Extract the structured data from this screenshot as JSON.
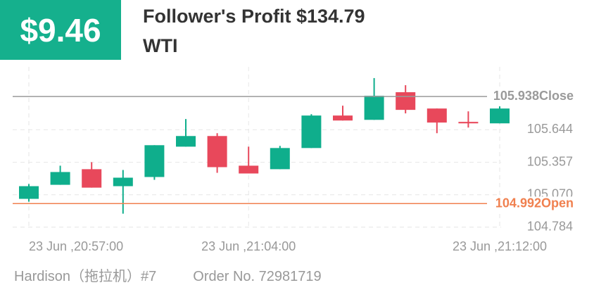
{
  "header": {
    "badge": "$9.46",
    "title": "Follower's Profit $134.79",
    "subtitle": "WTI"
  },
  "chart_data": {
    "type": "candlestick",
    "categories": [
      "23 Jun ,20:57:00",
      null,
      null,
      null,
      null,
      null,
      null,
      "23 Jun ,21:04:00",
      null,
      null,
      null,
      null,
      null,
      null,
      null,
      "23 Jun ,21:12:00"
    ],
    "open": [
      105.034,
      105.158,
      105.296,
      105.146,
      105.227,
      105.495,
      105.589,
      105.327,
      105.296,
      105.483,
      105.77,
      105.732,
      105.976,
      105.832,
      105.714,
      105.701
    ],
    "high": [
      105.165,
      105.327,
      105.358,
      105.289,
      105.508,
      105.739,
      105.614,
      105.495,
      105.502,
      105.782,
      105.857,
      106.101,
      106.038,
      105.832,
      105.807,
      105.851
    ],
    "low": [
      105.009,
      105.158,
      105.133,
      104.903,
      105.202,
      105.495,
      105.264,
      105.258,
      105.296,
      105.483,
      105.726,
      105.732,
      105.789,
      105.614,
      105.664,
      105.701
    ],
    "close": [
      105.146,
      105.271,
      105.133,
      105.221,
      105.508,
      105.589,
      105.314,
      105.258,
      105.483,
      105.77,
      105.726,
      105.945,
      105.82,
      105.708,
      105.701,
      105.832
    ],
    "up_color": "#0fae8c",
    "down_color": "#e8485b",
    "ylim": [
      104.77,
      106.2
    ],
    "yticks": [
      104.784,
      {
        "value": 105.07,
        "label": "105.070"
      },
      105.357,
      105.644
    ],
    "grid": true,
    "reference_lines": [
      {
        "value": 105.938,
        "label": "Close",
        "color": "#9a9a9a"
      },
      {
        "value": 104.992,
        "label": "Open",
        "color": "#f0804f"
      }
    ]
  },
  "footer": {
    "trader": "Hardison（拖拉机）#7",
    "order": "Order No. 72981719"
  }
}
